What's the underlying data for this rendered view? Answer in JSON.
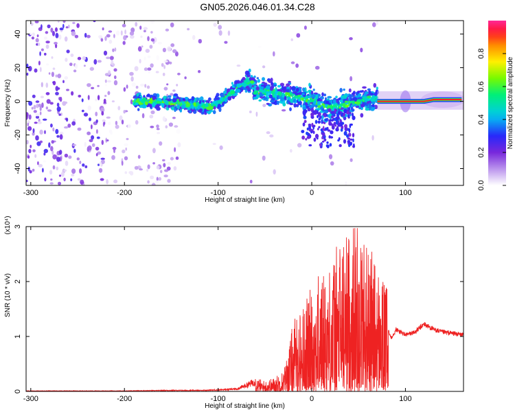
{
  "page_title": "GN05.2026.046.01.34.C28",
  "chart_data": [
    {
      "type": "heatmap",
      "title": "GN05.2026.046.01.34.C28",
      "xlabel": "Height of straight line (km)",
      "ylabel": "Frequency (Hz)",
      "xlim": [
        -305,
        162
      ],
      "ylim": [
        -50,
        48
      ],
      "x_ticks": [
        -300,
        -200,
        -100,
        0,
        100
      ],
      "y_ticks": [
        -40,
        -20,
        0,
        20,
        40
      ],
      "ridge": {
        "x": [
          -190,
          -170,
          -150,
          -130,
          -120,
          -110,
          -100,
          -90,
          -80,
          -70,
          -65,
          -60,
          -50,
          -40,
          -30,
          -20,
          -10,
          0,
          10,
          20,
          30,
          40,
          50,
          60,
          70
        ],
        "y": [
          0,
          0,
          -1,
          -2,
          -3,
          -3,
          -1,
          3,
          8,
          11,
          12,
          6,
          6,
          5,
          4,
          3,
          2,
          1,
          -2,
          -4,
          -3,
          -1,
          0,
          1,
          2
        ]
      },
      "tone": {
        "x": [
          70,
          80,
          90,
          100,
          110,
          120,
          130,
          140,
          150,
          160
        ],
        "y": [
          0,
          0,
          0,
          0,
          0,
          0,
          1,
          1,
          1,
          1
        ]
      },
      "colorbar": {
        "label": "Normalized spectral amplitude",
        "range": [
          0,
          1
        ],
        "ticks": [
          0.0,
          0.2,
          0.4,
          0.6,
          0.8
        ]
      }
    },
    {
      "type": "line",
      "xlabel": "Height of straight line (km)",
      "ylabel": "SNR (10 * v/v)",
      "multiplier": "(x10⁴)",
      "xlim": [
        -305,
        162
      ],
      "ylim": [
        0,
        3
      ],
      "x_ticks": [
        -300,
        -200,
        -100,
        0,
        100
      ],
      "y_ticks": [
        0,
        1,
        2,
        3
      ],
      "color": "#ee2222",
      "envelope": {
        "x": [
          -305,
          -200,
          -150,
          -120,
          -100,
          -80,
          -70,
          -60,
          -50,
          -40,
          -30,
          -25,
          -20,
          -10,
          0,
          10,
          20,
          30,
          40,
          50,
          60,
          70,
          75,
          80,
          82,
          85,
          90,
          95,
          100,
          110,
          120,
          130,
          140,
          150,
          162
        ],
        "y": [
          0.01,
          0.01,
          0.02,
          0.02,
          0.03,
          0.05,
          0.12,
          0.2,
          0.15,
          0.2,
          0.3,
          0.6,
          1.0,
          1.2,
          1.5,
          1.7,
          1.8,
          2.2,
          2.3,
          2.5,
          2.1,
          1.8,
          1.6,
          1.5,
          1.1,
          1.0,
          1.15,
          1.1,
          1.05,
          1.1,
          1.25,
          1.15,
          1.1,
          1.08,
          1.05
        ]
      }
    }
  ]
}
